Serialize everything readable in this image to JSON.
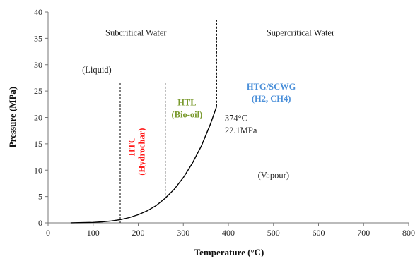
{
  "chart_data": {
    "type": "line",
    "xlabel": "Temperature (°C)",
    "ylabel": "Pressure (MPa)",
    "xlim": [
      0,
      800
    ],
    "ylim": [
      0,
      40
    ],
    "x_ticks": [
      0,
      100,
      200,
      300,
      400,
      500,
      600,
      700,
      800
    ],
    "y_ticks": [
      0,
      5,
      10,
      15,
      20,
      25,
      30,
      35,
      40
    ],
    "grid": false,
    "series": [
      {
        "x": [
          50,
          100,
          120,
          140,
          160,
          180,
          200,
          220,
          240,
          260,
          280,
          300,
          320,
          340,
          360,
          374
        ],
        "y": [
          0.01,
          0.1,
          0.2,
          0.36,
          0.62,
          1.0,
          1.55,
          2.3,
          3.3,
          4.7,
          6.4,
          8.6,
          11.3,
          14.6,
          18.7,
          22.1
        ],
        "color": "#000000"
      }
    ],
    "reference_lines": [
      {
        "orientation": "vertical",
        "x": 160,
        "y_from": 0,
        "y_to": 26.5,
        "style": "dashed"
      },
      {
        "orientation": "vertical",
        "x": 260,
        "y_from": 4.7,
        "y_to": 26.5,
        "style": "dashed"
      },
      {
        "orientation": "vertical",
        "x": 374,
        "y_from": 22.1,
        "y_to": 38.5,
        "style": "dashed"
      },
      {
        "orientation": "horizontal",
        "y": 21.2,
        "x_from": 374,
        "x_to": 660,
        "style": "dashed"
      }
    ],
    "annotations": [
      {
        "text": "Subcritical Water",
        "x": 195,
        "y": 35.5,
        "color": "#222222",
        "bold": false
      },
      {
        "text": "Supercritical Water",
        "x": 560,
        "y": 35.5,
        "color": "#222222",
        "bold": false
      },
      {
        "text": "(Liquid)",
        "x": 108,
        "y": 28.5,
        "color": "#222222",
        "bold": false
      },
      {
        "text": "(Vapour)",
        "x": 500,
        "y": 8.5,
        "color": "#222222",
        "bold": false
      },
      {
        "text": "374°C",
        "x": 392,
        "y": 19.3,
        "color": "#222222",
        "bold": false
      },
      {
        "text": "22.1MPa",
        "x": 392,
        "y": 17.0,
        "color": "#222222",
        "bold": false
      },
      {
        "text": "HTL",
        "x": 308,
        "y": 22.3,
        "color": "#7a9a2e",
        "bold": true
      },
      {
        "text": "(Bio-oil)",
        "x": 308,
        "y": 20.0,
        "color": "#7a9a2e",
        "bold": true
      },
      {
        "text": "HTG/SCWG",
        "x": 495,
        "y": 25.3,
        "color": "#4a8fd9",
        "bold": true
      },
      {
        "text": "(H2, CH4)",
        "x": 495,
        "y": 23.0,
        "color": "#4a8fd9",
        "bold": true
      },
      {
        "text": "HTC",
        "x": 192,
        "y": 14.5,
        "color": "#ff1a1a",
        "bold": true,
        "rotated": true
      },
      {
        "text": "(Hydrochar)",
        "x": 214,
        "y": 13.5,
        "color": "#ff1a1a",
        "bold": true,
        "rotated": true
      }
    ]
  }
}
